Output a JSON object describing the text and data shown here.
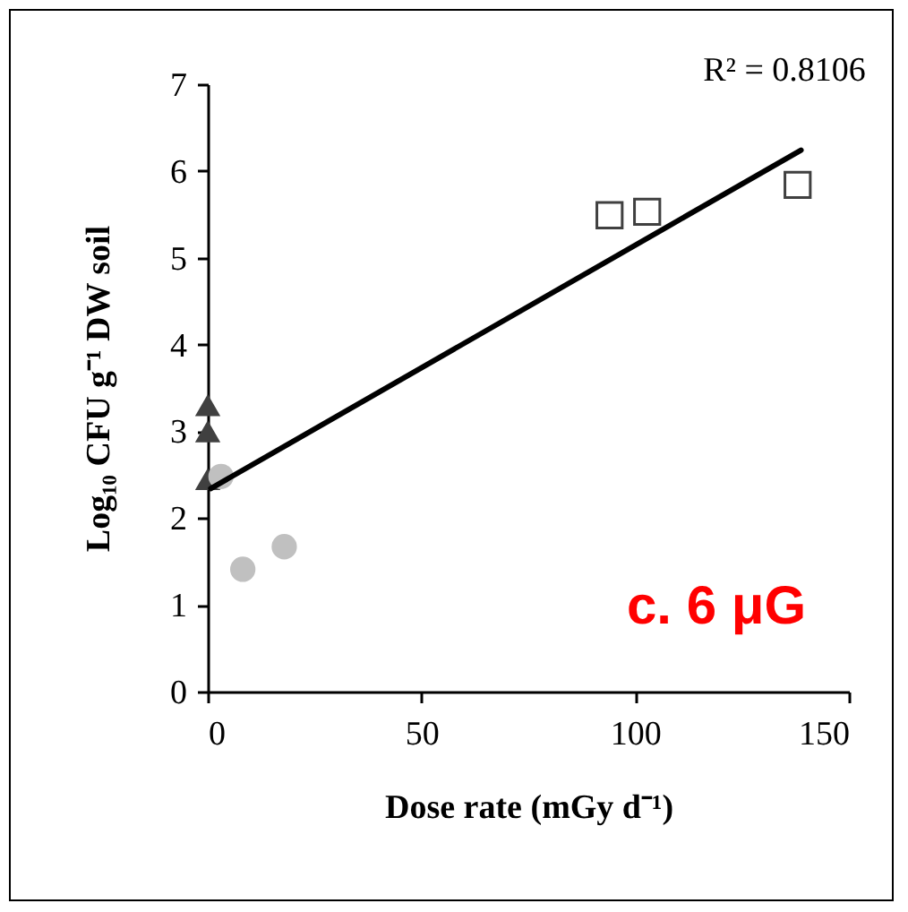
{
  "chart_data": {
    "type": "scatter",
    "xlabel": "Dose rate (mGy d⁻¹)",
    "ylabel": "Log₁₀ CFU g⁻¹ DW soil",
    "annotations": [
      "R² = 0.8106",
      "c. 6 μG"
    ],
    "xlim": [
      0,
      150
    ],
    "xticks": [
      0,
      50,
      100,
      150
    ],
    "ylim": [
      0,
      7
    ],
    "yticks": [
      0,
      1,
      2,
      3,
      4,
      5,
      6,
      7
    ],
    "grid": false,
    "series": [
      {
        "marker": "triangle",
        "color": "#404040",
        "x": [
          0,
          0,
          0
        ],
        "values": [
          3.3,
          3.0,
          2.45
        ]
      },
      {
        "marker": "circle",
        "color": "#c0c0c0",
        "x": [
          3.1,
          8.2,
          17.9
        ],
        "values": [
          2.48,
          1.41,
          1.67
        ]
      },
      {
        "marker": "square",
        "color": "#404040",
        "x": [
          94,
          102.8,
          138
        ],
        "values": [
          5.49,
          5.53,
          5.84
        ]
      },
      {
        "type": "line",
        "color": "#000000",
        "x": [
          0.7,
          138.8
        ],
        "values": [
          2.34,
          6.24
        ]
      }
    ]
  }
}
